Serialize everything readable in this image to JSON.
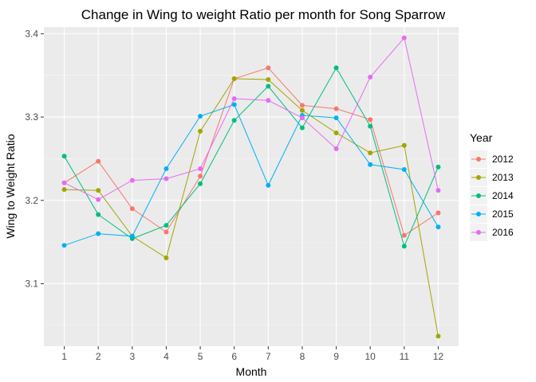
{
  "chart_data": {
    "type": "line",
    "title": "Change in Wing to weight Ratio per month for Song Sparrow",
    "xlabel": "Month",
    "ylabel": "Wing to Weight Ratio",
    "categories": [
      "1",
      "2",
      "3",
      "4",
      "5",
      "6",
      "7",
      "8",
      "9",
      "10",
      "11",
      "12"
    ],
    "yticks": [
      "3.1",
      "3.2",
      "3.3",
      "3.4"
    ],
    "ylim": [
      3.025,
      3.408
    ],
    "grid": true,
    "legend": {
      "title": "Year",
      "position": "right"
    },
    "series": [
      {
        "name": "2012",
        "color": "#F8766D",
        "values": [
          3.221,
          3.247,
          3.19,
          3.162,
          3.229,
          3.346,
          3.359,
          3.314,
          3.31,
          3.297,
          3.158,
          3.185
        ]
      },
      {
        "name": "2013",
        "color": "#A3A500",
        "values": [
          3.213,
          3.212,
          3.157,
          3.131,
          3.283,
          3.346,
          3.345,
          3.308,
          3.281,
          3.257,
          3.266,
          3.037
        ]
      },
      {
        "name": "2014",
        "color": "#00BF7D",
        "values": [
          3.253,
          3.183,
          3.154,
          3.17,
          3.22,
          3.296,
          3.337,
          3.287,
          3.359,
          3.289,
          3.145,
          3.24
        ]
      },
      {
        "name": "2015",
        "color": "#00B0F6",
        "values": [
          3.146,
          3.16,
          3.157,
          3.238,
          3.301,
          3.315,
          3.218,
          3.302,
          3.299,
          3.243,
          3.237,
          3.168
        ]
      },
      {
        "name": "2016",
        "color": "#E76BF3",
        "values": [
          3.221,
          3.201,
          3.224,
          3.226,
          3.238,
          3.322,
          3.32,
          3.299,
          3.262,
          3.348,
          3.395,
          3.212
        ]
      }
    ]
  }
}
